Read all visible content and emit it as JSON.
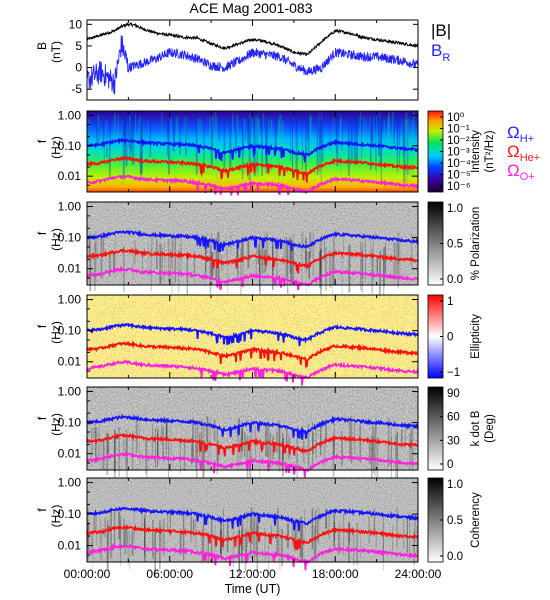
{
  "chart_data": [
    {
      "type": "line",
      "title": "ACE Mag 2001-083",
      "ylabel": "B",
      "yunit": "(nT)",
      "ylim": [
        -7.5,
        11
      ],
      "yticks": [
        10,
        5,
        0,
        -5
      ],
      "xlim": [
        0,
        24
      ],
      "grid": false,
      "legend_position": "right",
      "series": [
        {
          "name": "|B|",
          "color": "#000000",
          "x": [
            0,
            1,
            2,
            2.5,
            3,
            3.5,
            4,
            5,
            6,
            7,
            8,
            9,
            10,
            11,
            12,
            13,
            14,
            15,
            16,
            17,
            18,
            19,
            20,
            21,
            22,
            23,
            24
          ],
          "values": [
            6.5,
            7.5,
            8.5,
            9.5,
            10.0,
            9.8,
            9.0,
            8.0,
            7.5,
            7.0,
            6.8,
            5.5,
            4.5,
            5.5,
            6.5,
            6.0,
            5.0,
            3.5,
            3.0,
            6.0,
            8.5,
            8.0,
            7.0,
            6.5,
            6.0,
            5.5,
            5.0
          ]
        },
        {
          "name": "B_R",
          "color": "#2424ff",
          "x": [
            0,
            0.5,
            1,
            2,
            2.5,
            3,
            4,
            5,
            6,
            7,
            8,
            9,
            10,
            11,
            12,
            13,
            14,
            15,
            16,
            17,
            18,
            19,
            20,
            21,
            22,
            23,
            24
          ],
          "values": [
            -3.0,
            -2.0,
            -1.0,
            -3.5,
            5.5,
            0.0,
            1.0,
            2.0,
            3.5,
            3.0,
            2.0,
            0.5,
            0.0,
            1.5,
            3.5,
            3.0,
            2.5,
            0.5,
            -1.0,
            0.0,
            3.5,
            3.0,
            2.5,
            2.5,
            2.0,
            1.5,
            0.5
          ]
        }
      ]
    },
    {
      "type": "heatmap",
      "ylabel": "f",
      "yunit": "(Hz)",
      "yscale": "log",
      "ylim": [
        0.003,
        1.4
      ],
      "ytick_labels": [
        "1.00",
        "0.10",
        "0.01"
      ],
      "colorbar": {
        "label": "Intensity",
        "unit": "(nT²/Hz)",
        "ticks": [
          "10⁰",
          "10⁻¹",
          "10⁻²",
          "10⁻³",
          "10⁻⁴",
          "10⁻⁵",
          "10⁻⁶"
        ],
        "scale": "rainbow"
      },
      "overlay_labels": [
        {
          "symbol": "Ω",
          "subscript": "H+",
          "color": "#2424ff"
        },
        {
          "symbol": "Ω",
          "subscript": "He+",
          "color": "#ff1a1a"
        },
        {
          "symbol": "Ω",
          "subscript": "O+",
          "color": "#ff22dd"
        }
      ]
    },
    {
      "type": "heatmap",
      "ylabel": "f",
      "yunit": "(Hz)",
      "yscale": "log",
      "ylim": [
        0.003,
        1.4
      ],
      "ytick_labels": [
        "1.00",
        "0.10",
        "0.01"
      ],
      "colorbar": {
        "label": "% Polarization",
        "ticks": [
          "1.0",
          "0.5",
          "0.0"
        ],
        "scale": "grayscale"
      }
    },
    {
      "type": "heatmap",
      "ylabel": "f",
      "yunit": "(Hz)",
      "yscale": "log",
      "ylim": [
        0.003,
        1.4
      ],
      "ytick_labels": [
        "1.00",
        "0.10",
        "0.01"
      ],
      "colorbar": {
        "label": "Ellipticity",
        "ticks": [
          "1",
          "0",
          "−1"
        ],
        "scale": "blue-white-red"
      }
    },
    {
      "type": "heatmap",
      "ylabel": "f",
      "yunit": "(Hz)",
      "yscale": "log",
      "ylim": [
        0.003,
        1.4
      ],
      "ytick_labels": [
        "1.00",
        "0.10",
        "0.01"
      ],
      "colorbar": {
        "label": "k dot B",
        "unit": "(Deg)",
        "ticks": [
          "90",
          "60",
          "30",
          "0"
        ],
        "scale": "grayscale"
      }
    },
    {
      "type": "heatmap",
      "ylabel": "f",
      "yunit": "(Hz)",
      "yscale": "log",
      "ylim": [
        0.003,
        1.4
      ],
      "ytick_labels": [
        "1.00",
        "0.10",
        "0.01"
      ],
      "colorbar": {
        "label": "Coherency",
        "ticks": [
          "1.0",
          "0.5",
          "0.0"
        ],
        "scale": "grayscale"
      },
      "xlabel": "Time (UT)",
      "xtick_labels": [
        "00:00:00",
        "06:00:00",
        "12:00:00",
        "18:00:00",
        "24:00:00"
      ],
      "xlim": [
        0,
        24
      ]
    }
  ],
  "gyrofrequencies": {
    "hours": [
      0,
      1,
      2,
      2.5,
      3,
      4,
      5,
      6,
      7,
      8,
      9,
      10,
      11,
      12,
      13,
      14,
      15,
      16,
      17,
      18,
      19,
      20,
      21,
      22,
      23,
      24
    ],
    "H+": [
      0.1,
      0.11,
      0.14,
      0.15,
      0.15,
      0.13,
      0.12,
      0.115,
      0.11,
      0.1,
      0.08,
      0.06,
      0.075,
      0.1,
      0.09,
      0.08,
      0.06,
      0.05,
      0.09,
      0.13,
      0.12,
      0.11,
      0.1,
      0.09,
      0.08,
      0.075
    ],
    "He+": [
      0.025,
      0.027,
      0.035,
      0.038,
      0.038,
      0.032,
      0.03,
      0.029,
      0.027,
      0.025,
      0.02,
      0.015,
      0.019,
      0.025,
      0.022,
      0.02,
      0.015,
      0.012,
      0.022,
      0.032,
      0.03,
      0.028,
      0.025,
      0.022,
      0.02,
      0.019
    ],
    "O+": [
      0.006,
      0.007,
      0.009,
      0.0095,
      0.0095,
      0.008,
      0.0075,
      0.0072,
      0.007,
      0.006,
      0.005,
      0.0038,
      0.0047,
      0.006,
      0.0055,
      0.005,
      0.0038,
      0.003,
      0.0055,
      0.008,
      0.0075,
      0.007,
      0.0063,
      0.0056,
      0.005,
      0.0047
    ]
  }
}
